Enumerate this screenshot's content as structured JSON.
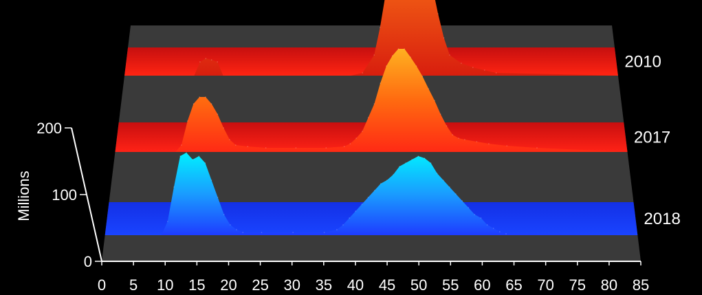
{
  "chart_data": {
    "type": "area",
    "xlabel": "",
    "ylabel": "Millions",
    "x_ticks": [
      0,
      5,
      10,
      15,
      20,
      25,
      30,
      35,
      40,
      45,
      50,
      55,
      60,
      65,
      70,
      75,
      80,
      85
    ],
    "xlim": [
      0,
      85
    ],
    "y_ticks": [
      0,
      100,
      200
    ],
    "ylim": [
      0,
      200
    ],
    "colors": {
      "2018": "#1e3cff",
      "2017": "#ff2a1a",
      "2010": "#e8460f",
      "floor": "#3a3a3a"
    },
    "series": [
      {
        "name": "2010",
        "x": [
          0,
          10,
          12,
          13,
          14,
          15,
          16,
          17,
          18,
          20,
          39,
          41,
          43,
          44,
          45,
          46,
          47,
          48,
          49,
          50,
          51,
          52,
          53,
          54,
          55,
          56,
          58,
          60,
          62,
          64,
          85
        ],
        "values": [
          0,
          0,
          0,
          20,
          25,
          23,
          20,
          0,
          0,
          0,
          0,
          4,
          30,
          70,
          120,
          170,
          205,
          230,
          250,
          245,
          215,
          175,
          130,
          90,
          55,
          30,
          18,
          12,
          8,
          4,
          0
        ]
      },
      {
        "name": "2017",
        "x": [
          0,
          10,
          11,
          12,
          13,
          14,
          15,
          16,
          17,
          18,
          19,
          20,
          22,
          25,
          30,
          35,
          38,
          39,
          40,
          41,
          42,
          43,
          44,
          45,
          46,
          47,
          48,
          49,
          50,
          51,
          52,
          53,
          54,
          55,
          56,
          57,
          58,
          60,
          62,
          65,
          70,
          85
        ],
        "values": [
          0,
          0,
          10,
          45,
          70,
          80,
          80,
          70,
          55,
          35,
          18,
          10,
          8,
          6,
          6,
          6,
          8,
          12,
          20,
          30,
          50,
          70,
          100,
          125,
          140,
          150,
          150,
          138,
          125,
          110,
          92,
          75,
          55,
          38,
          25,
          20,
          18,
          15,
          12,
          9,
          6,
          0
        ]
      },
      {
        "name": "2018",
        "x": [
          0,
          9,
          10,
          11,
          12,
          13,
          14,
          15,
          16,
          17,
          18,
          19,
          20,
          21,
          22,
          25,
          30,
          35,
          37,
          38,
          39,
          40,
          41,
          42,
          43,
          44,
          45,
          46,
          47,
          48,
          49,
          50,
          51,
          52,
          53,
          54,
          55,
          56,
          57,
          58,
          59,
          60,
          61,
          62,
          63,
          64,
          85
        ],
        "values": [
          0,
          0,
          20,
          70,
          115,
          120,
          110,
          115,
          105,
          80,
          55,
          30,
          15,
          8,
          4,
          4,
          4,
          4,
          8,
          15,
          25,
          35,
          45,
          55,
          65,
          75,
          80,
          88,
          100,
          105,
          110,
          115,
          112,
          105,
          90,
          80,
          70,
          60,
          50,
          40,
          30,
          25,
          15,
          10,
          5,
          2,
          0
        ]
      }
    ]
  }
}
